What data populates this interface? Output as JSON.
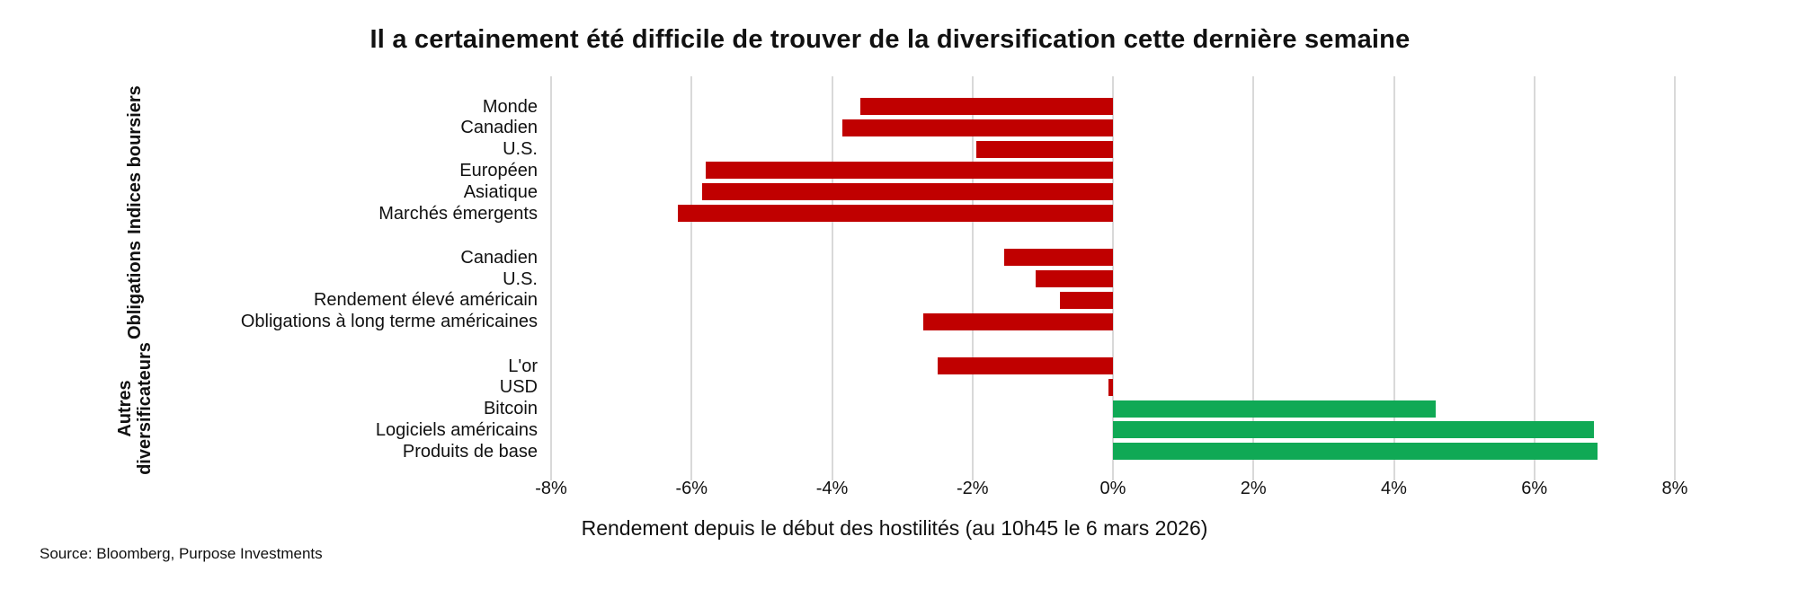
{
  "title": "Il a certainement été difficile de trouver de la diversification cette dernière semaine",
  "x_axis_title": "Rendement depuis le début des hostilités (au 10h45 le 6 mars 2026)",
  "source": "Source: Bloomberg, Purpose Investments",
  "colors": {
    "negative": "#C00000",
    "positive": "#10A955",
    "gridline": "#D9D9D9",
    "text": "#111111"
  },
  "chart_data": {
    "type": "bar",
    "orientation": "horizontal",
    "title": "Il a certainement été difficile de trouver de la diversification cette dernière semaine",
    "xlabel": "Rendement depuis le début des hostilités (au 10h45 le 6 mars 2026)",
    "xlim": [
      -8,
      8
    ],
    "x_ticks": [
      {
        "value": -8,
        "label": "-8%"
      },
      {
        "value": -6,
        "label": "-6%"
      },
      {
        "value": -4,
        "label": "-4%"
      },
      {
        "value": -2,
        "label": "-2%"
      },
      {
        "value": 0,
        "label": "0%"
      },
      {
        "value": 2,
        "label": "2%"
      },
      {
        "value": 4,
        "label": "4%"
      },
      {
        "value": 6,
        "label": "6%"
      },
      {
        "value": 8,
        "label": "8%"
      }
    ],
    "grid": true,
    "legend": false,
    "unit": "%",
    "groups": [
      {
        "label": "Indices boursiers",
        "items": [
          {
            "label": "Monde",
            "value": -3.6
          },
          {
            "label": "Canadien",
            "value": -3.85
          },
          {
            "label": "U.S.",
            "value": -1.95
          },
          {
            "label": "Européen",
            "value": -5.8
          },
          {
            "label": "Asiatique",
            "value": -5.85
          },
          {
            "label": "Marchés émergents",
            "value": -6.2
          }
        ]
      },
      {
        "label": "Obligations",
        "items": [
          {
            "label": "Canadien",
            "value": -1.55
          },
          {
            "label": "U.S.",
            "value": -1.1
          },
          {
            "label": "Rendement élevé américain",
            "value": -0.75
          },
          {
            "label": "Obligations à long terme américaines",
            "value": -2.7
          }
        ]
      },
      {
        "label": "Autres\ndiversificateurs",
        "items": [
          {
            "label": "L'or",
            "value": -2.5
          },
          {
            "label": "USD",
            "value": -0.07
          },
          {
            "label": "Bitcoin",
            "value": 4.6
          },
          {
            "label": "Logiciels américains",
            "value": 6.85
          },
          {
            "label": "Produits de base",
            "value": 6.9
          }
        ]
      }
    ]
  }
}
